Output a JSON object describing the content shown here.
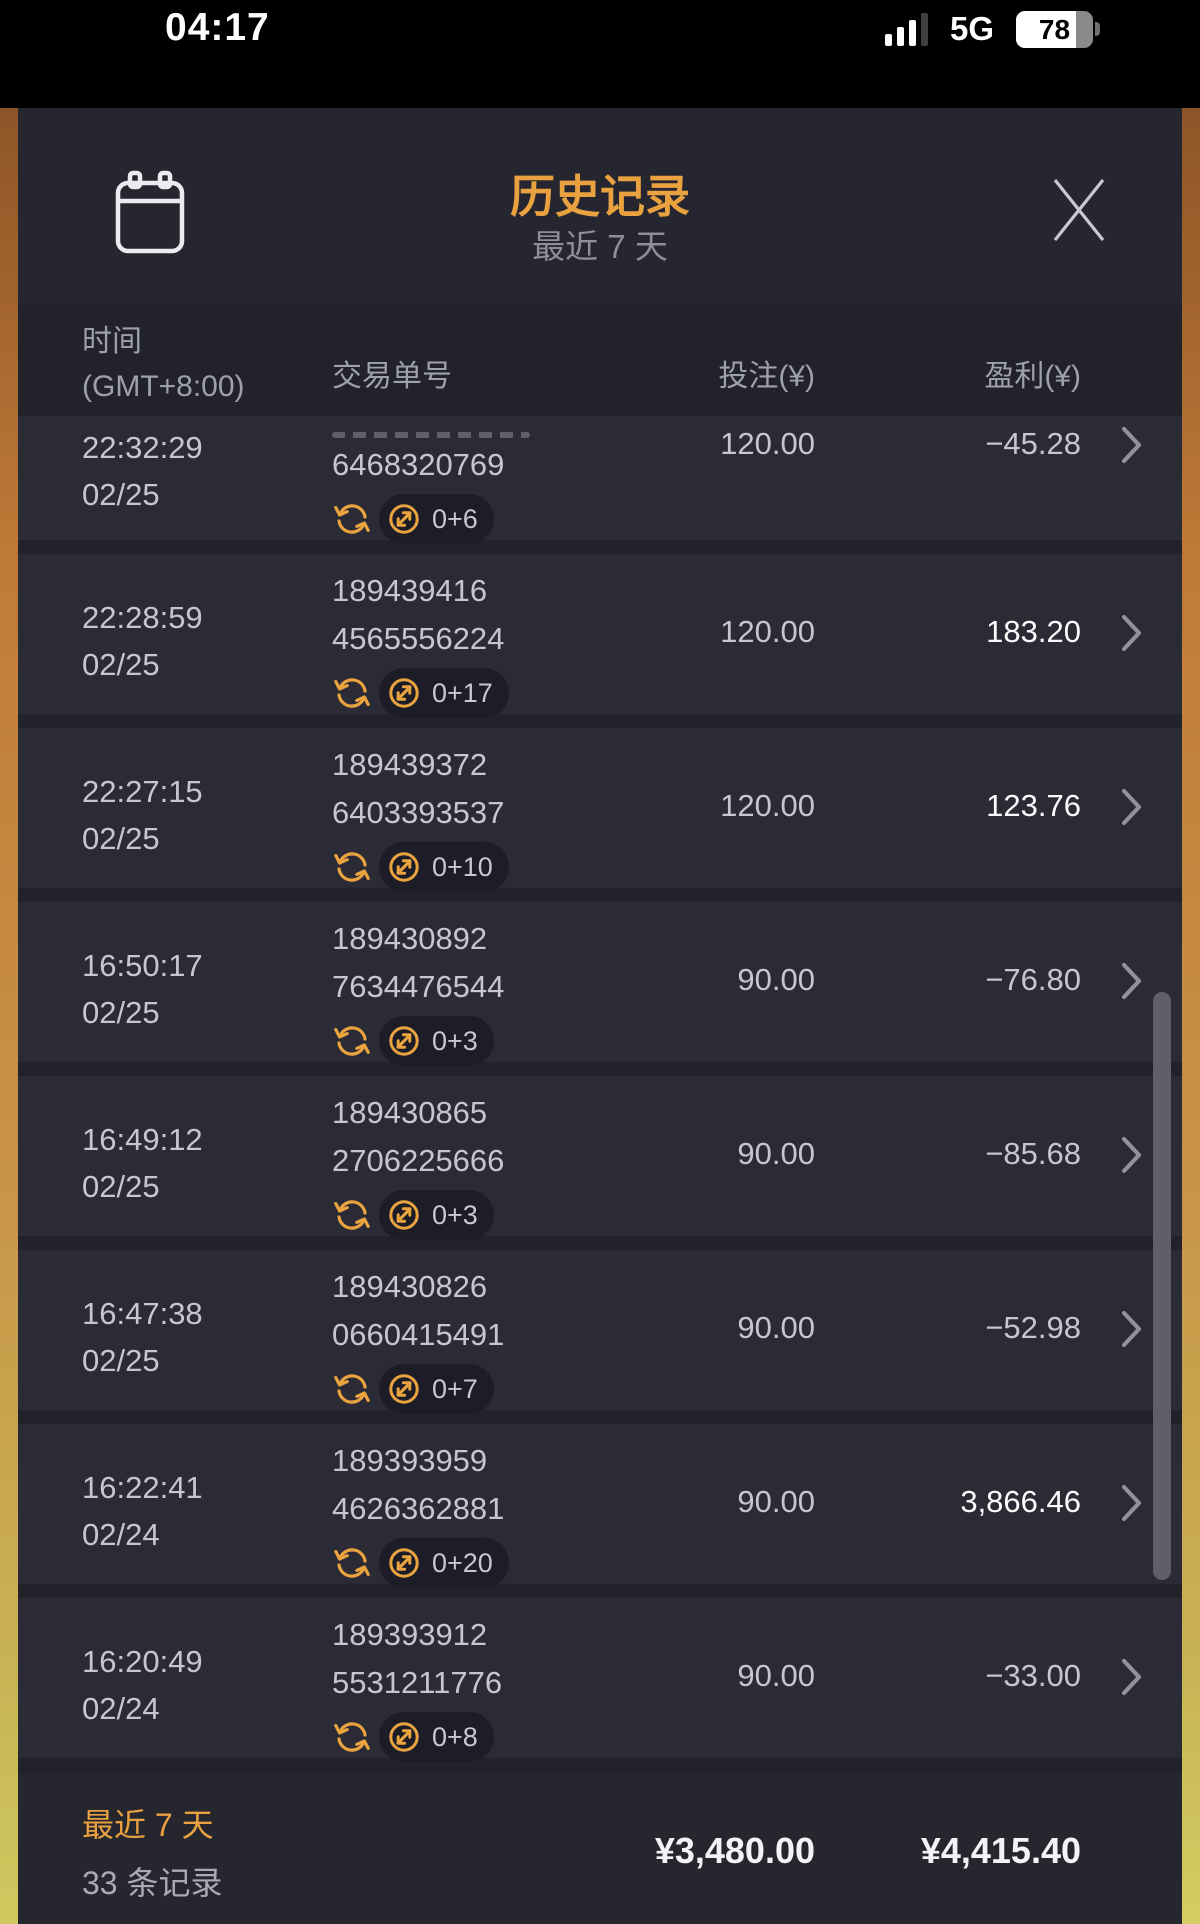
{
  "status_bar": {
    "time": "04:17",
    "network": "5G",
    "battery_percent": 78,
    "battery_label": "78"
  },
  "header": {
    "title": "历史记录",
    "subtitle": "最近 7 天"
  },
  "table": {
    "headers": {
      "time_line1": "时间",
      "time_line2": "(GMT+8:00)",
      "order": "交易单号",
      "bet": "投注(¥)",
      "profit": "盈利(¥)"
    }
  },
  "rows": [
    {
      "time": "22:32:29",
      "date": "02/25",
      "id_top": "",
      "id": "6468320769",
      "bet": "120.00",
      "profit": "−45.28",
      "badge": "0+6",
      "positive": false,
      "clipped_top": true
    },
    {
      "time": "22:28:59",
      "date": "02/25",
      "id_top": "189439416",
      "id": "4565556224",
      "bet": "120.00",
      "profit": "183.20",
      "badge": "0+17",
      "positive": true,
      "clipped_top": false
    },
    {
      "time": "22:27:15",
      "date": "02/25",
      "id_top": "189439372",
      "id": "6403393537",
      "bet": "120.00",
      "profit": "123.76",
      "badge": "0+10",
      "positive": true,
      "clipped_top": false
    },
    {
      "time": "16:50:17",
      "date": "02/25",
      "id_top": "189430892",
      "id": "7634476544",
      "bet": "90.00",
      "profit": "−76.80",
      "badge": "0+3",
      "positive": false,
      "clipped_top": false
    },
    {
      "time": "16:49:12",
      "date": "02/25",
      "id_top": "189430865",
      "id": "2706225666",
      "bet": "90.00",
      "profit": "−85.68",
      "badge": "0+3",
      "positive": false,
      "clipped_top": false
    },
    {
      "time": "16:47:38",
      "date": "02/25",
      "id_top": "189430826",
      "id": "0660415491",
      "bet": "90.00",
      "profit": "−52.98",
      "badge": "0+7",
      "positive": false,
      "clipped_top": false
    },
    {
      "time": "16:22:41",
      "date": "02/24",
      "id_top": "189393959",
      "id": "4626362881",
      "bet": "90.00",
      "profit": "3,866.46",
      "badge": "0+20",
      "positive": true,
      "clipped_top": false
    },
    {
      "time": "16:20:49",
      "date": "02/24",
      "id_top": "189393912",
      "id": "5531211776",
      "bet": "90.00",
      "profit": "−33.00",
      "badge": "0+8",
      "positive": false,
      "clipped_top": false
    }
  ],
  "footer": {
    "range_label": "最近 7 天",
    "count_label": "33 条记录",
    "total_bet": "¥3,480.00",
    "total_profit": "¥4,415.40"
  },
  "icons": {
    "calendar-icon": "date picker calendar",
    "close-icon": "✕",
    "refresh-icon": "circular sync arrows",
    "swap-arrows-icon": "circle with two diagonal transfer arrows",
    "chevron-right-icon": "›",
    "signal-bars-icon": "cellular signal bars",
    "battery-icon": "battery with percent"
  },
  "colors": {
    "accent_orange": "#E9A23F",
    "text_normal": "#C5C6D0",
    "text_positive": "#FBFBFD",
    "panel_bg": "#22222B",
    "row_bg": "#2B2B35",
    "pill_bg": "#1D1D27",
    "footer_bg": "#26262F",
    "edge_gold_top": "#8D5527",
    "edge_gold_bottom": "#CEC95F"
  }
}
